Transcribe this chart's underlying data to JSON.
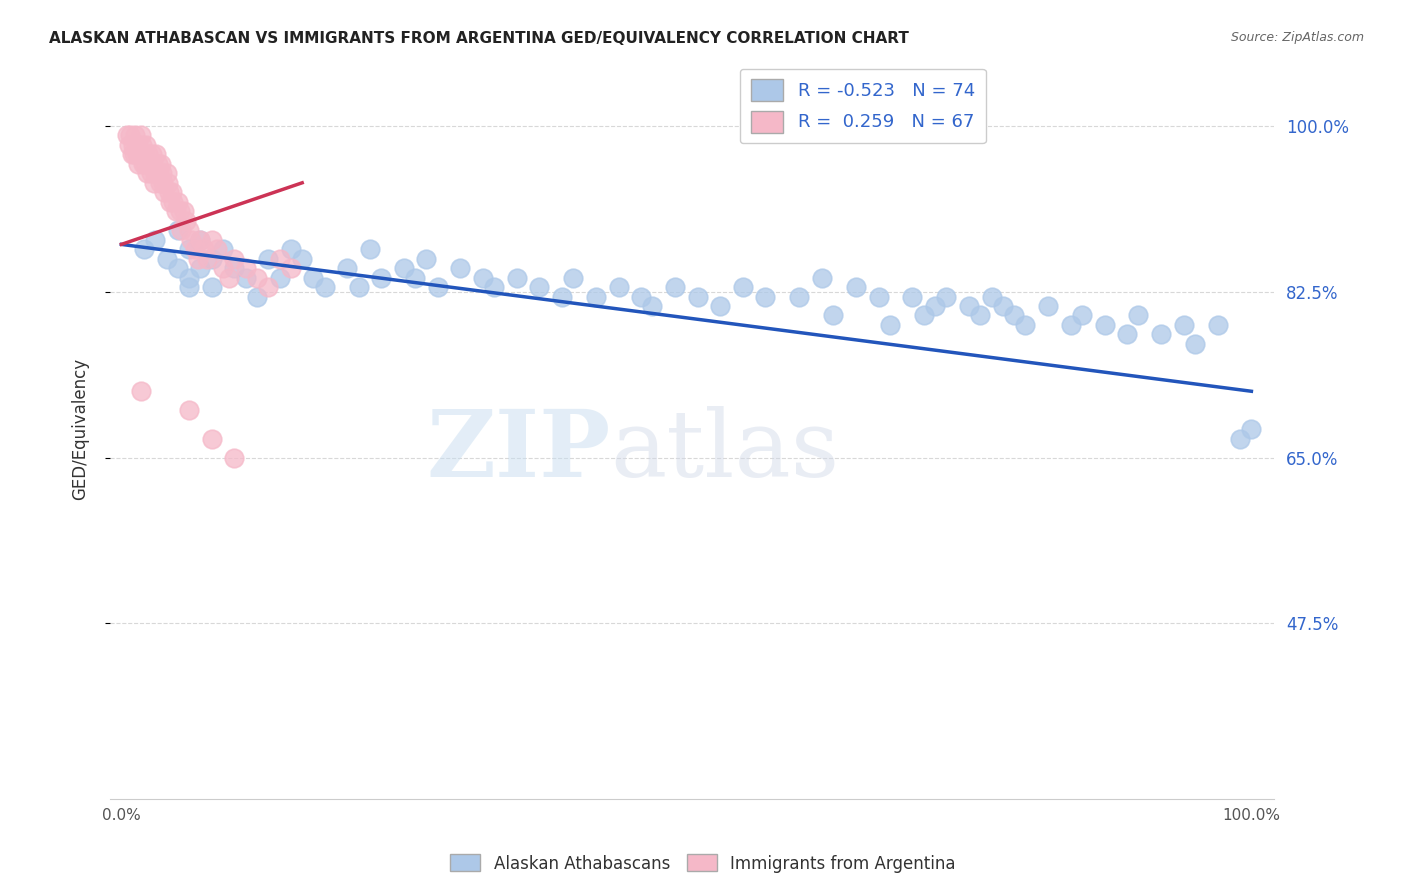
{
  "title": "ALASKAN ATHABASCAN VS IMMIGRANTS FROM ARGENTINA GED/EQUIVALENCY CORRELATION CHART",
  "source": "Source: ZipAtlas.com",
  "ylabel": "GED/Equivalency",
  "blue_R": -0.523,
  "blue_N": 74,
  "pink_R": 0.259,
  "pink_N": 67,
  "blue_color": "#adc8e8",
  "pink_color": "#f5b8c8",
  "blue_line_color": "#2255bb",
  "pink_line_color": "#cc3355",
  "watermark_zip": "ZIP",
  "watermark_atlas": "atlas",
  "ytick_vals": [
    0.475,
    0.65,
    0.825,
    1.0
  ],
  "ytick_labels": [
    "47.5%",
    "65.0%",
    "82.5%",
    "100.0%"
  ],
  "xtick_vals": [
    0.0,
    1.0
  ],
  "xtick_labels": [
    "0.0%",
    "100.0%"
  ],
  "background_color": "#ffffff",
  "grid_color": "#d8d8d8",
  "blue_scatter_x": [
    0.02,
    0.03,
    0.04,
    0.05,
    0.05,
    0.06,
    0.06,
    0.06,
    0.07,
    0.07,
    0.08,
    0.08,
    0.09,
    0.1,
    0.11,
    0.12,
    0.13,
    0.14,
    0.15,
    0.16,
    0.17,
    0.18,
    0.2,
    0.21,
    0.22,
    0.23,
    0.25,
    0.26,
    0.27,
    0.28,
    0.3,
    0.32,
    0.33,
    0.35,
    0.37,
    0.39,
    0.4,
    0.42,
    0.44,
    0.46,
    0.47,
    0.49,
    0.51,
    0.53,
    0.55,
    0.57,
    0.6,
    0.62,
    0.63,
    0.65,
    0.67,
    0.68,
    0.7,
    0.71,
    0.72,
    0.73,
    0.75,
    0.76,
    0.77,
    0.78,
    0.79,
    0.8,
    0.82,
    0.84,
    0.85,
    0.87,
    0.89,
    0.9,
    0.92,
    0.94,
    0.95,
    0.97,
    0.99,
    1.0
  ],
  "blue_scatter_y": [
    0.87,
    0.88,
    0.86,
    0.89,
    0.85,
    0.87,
    0.84,
    0.83,
    0.88,
    0.85,
    0.86,
    0.83,
    0.87,
    0.85,
    0.84,
    0.82,
    0.86,
    0.84,
    0.87,
    0.86,
    0.84,
    0.83,
    0.85,
    0.83,
    0.87,
    0.84,
    0.85,
    0.84,
    0.86,
    0.83,
    0.85,
    0.84,
    0.83,
    0.84,
    0.83,
    0.82,
    0.84,
    0.82,
    0.83,
    0.82,
    0.81,
    0.83,
    0.82,
    0.81,
    0.83,
    0.82,
    0.82,
    0.84,
    0.8,
    0.83,
    0.82,
    0.79,
    0.82,
    0.8,
    0.81,
    0.82,
    0.81,
    0.8,
    0.82,
    0.81,
    0.8,
    0.79,
    0.81,
    0.79,
    0.8,
    0.79,
    0.78,
    0.8,
    0.78,
    0.79,
    0.77,
    0.79,
    0.67,
    0.68
  ],
  "pink_scatter_x": [
    0.005,
    0.007,
    0.008,
    0.009,
    0.01,
    0.011,
    0.012,
    0.013,
    0.014,
    0.015,
    0.015,
    0.016,
    0.017,
    0.018,
    0.019,
    0.02,
    0.021,
    0.022,
    0.023,
    0.024,
    0.025,
    0.026,
    0.027,
    0.028,
    0.029,
    0.03,
    0.031,
    0.032,
    0.033,
    0.034,
    0.035,
    0.036,
    0.037,
    0.038,
    0.04,
    0.041,
    0.042,
    0.043,
    0.045,
    0.046,
    0.048,
    0.05,
    0.052,
    0.053,
    0.055,
    0.057,
    0.06,
    0.062,
    0.065,
    0.068,
    0.07,
    0.073,
    0.076,
    0.08,
    0.085,
    0.09,
    0.095,
    0.1,
    0.11,
    0.12,
    0.13,
    0.14,
    0.15,
    0.017,
    0.06,
    0.08,
    0.1
  ],
  "pink_scatter_y": [
    0.99,
    0.98,
    0.99,
    0.97,
    0.98,
    0.97,
    0.99,
    0.98,
    0.97,
    0.96,
    0.98,
    0.97,
    0.99,
    0.98,
    0.96,
    0.97,
    0.96,
    0.98,
    0.95,
    0.97,
    0.96,
    0.95,
    0.97,
    0.96,
    0.94,
    0.95,
    0.97,
    0.96,
    0.95,
    0.94,
    0.96,
    0.95,
    0.94,
    0.93,
    0.95,
    0.94,
    0.93,
    0.92,
    0.93,
    0.92,
    0.91,
    0.92,
    0.91,
    0.89,
    0.91,
    0.9,
    0.89,
    0.88,
    0.87,
    0.86,
    0.88,
    0.87,
    0.86,
    0.88,
    0.87,
    0.85,
    0.84,
    0.86,
    0.85,
    0.84,
    0.83,
    0.86,
    0.85,
    0.72,
    0.7,
    0.67,
    0.65
  ]
}
